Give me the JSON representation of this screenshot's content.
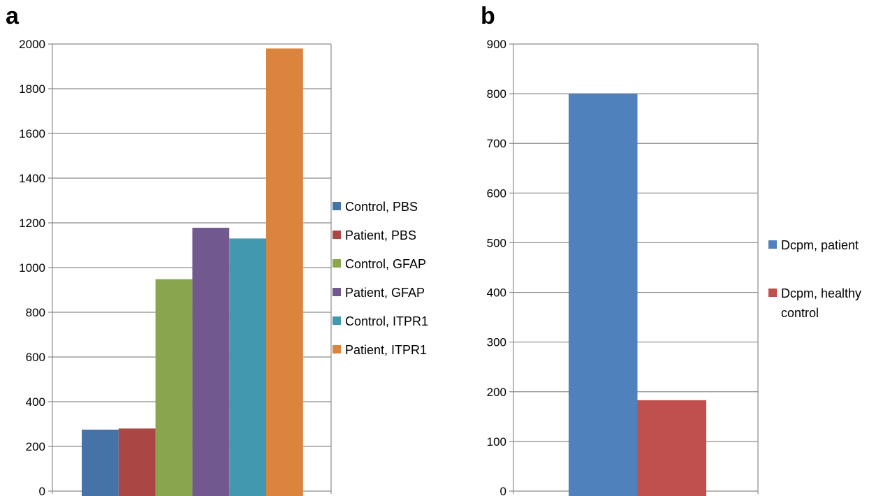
{
  "chart_data": [
    {
      "type": "bar",
      "panel_label": "a",
      "categories": [
        "Control, PBS",
        "Patient, PBS",
        "Control, GFAP",
        "Patient, GFAP",
        "Control, ITPR1",
        "Patient, ITPR1"
      ],
      "values": [
        275,
        280,
        948,
        1178,
        1130,
        1980
      ],
      "colors": [
        "#4572a7",
        "#aa4643",
        "#89a54e",
        "#71588f",
        "#4198af",
        "#db843d"
      ],
      "ylim": [
        0,
        2000
      ],
      "yticks": [
        "0",
        "200",
        "400",
        "600",
        "800",
        "1000",
        "1200",
        "1400",
        "1600",
        "1800",
        "2000"
      ],
      "grid": true,
      "legend_position": "right",
      "legend": [
        "Control, PBS",
        "Patient, PBS",
        "Control, GFAP",
        "Patient, GFAP",
        "Control, ITPR1",
        "Patient, ITPR1"
      ],
      "title": "",
      "xlabel": "",
      "ylabel": ""
    },
    {
      "type": "bar",
      "panel_label": "b",
      "categories": [
        "Dcpm, patient",
        "Dcpm, healthy control"
      ],
      "values": [
        800,
        183
      ],
      "colors": [
        "#4f81bd",
        "#c0504d"
      ],
      "ylim": [
        0,
        900
      ],
      "yticks": [
        "0",
        "100",
        "200",
        "300",
        "400",
        "500",
        "600",
        "700",
        "800",
        "900"
      ],
      "grid": true,
      "legend_position": "right",
      "legend": [
        [
          "Dcpm, patient"
        ],
        [
          "Dcpm, healthy",
          "control"
        ]
      ],
      "title": "",
      "xlabel": "",
      "ylabel": ""
    }
  ]
}
